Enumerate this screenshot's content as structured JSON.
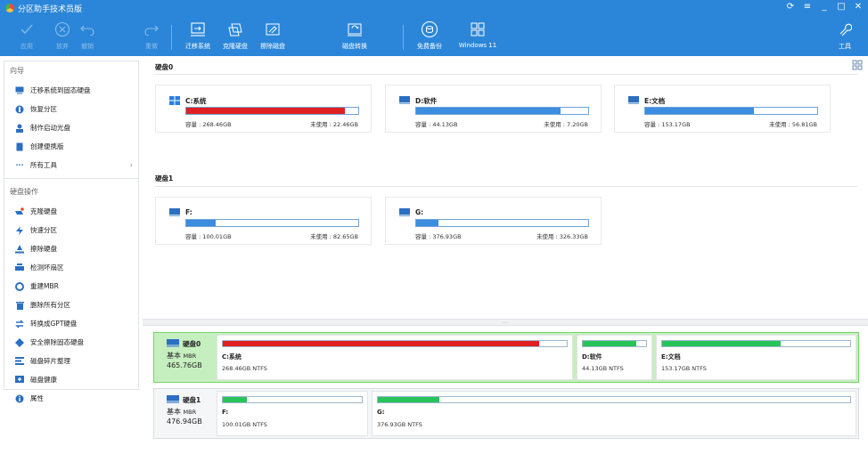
{
  "app": {
    "title": "分区助手技术员版"
  },
  "toolbar": {
    "apply": "应用",
    "discard": "放弃",
    "undo": "撤销",
    "redo": "重做",
    "migrate": "迁移系统",
    "clone": "克隆硬盘",
    "wipe": "擦除磁盘",
    "convert": "磁盘转换",
    "backup": "免费备份",
    "win11": "Windows 11",
    "tools": "工具"
  },
  "sidebar": {
    "wizard_title": "向导",
    "wizard_items": [
      "迁移系统到固态硬盘",
      "恢复分区",
      "制作启动光盘",
      "创建便携版",
      "所有工具"
    ],
    "disk_ops_title": "硬盘操作",
    "disk_ops_items": [
      "克隆硬盘",
      "快速分区",
      "擦除硬盘",
      "检测坏扇区",
      "重建MBR",
      "删除所有分区",
      "转换成GPT硬盘",
      "安全擦除固态硬盘",
      "磁盘碎片整理",
      "磁盘健康",
      "属性"
    ]
  },
  "disks": [
    {
      "title": "硬盘0",
      "row_label": "硬盘0",
      "type": "基本",
      "style": "MBR",
      "size": "465.76GB",
      "partitions": [
        {
          "name": "C:系统",
          "capacity": "容量 : 268.46GB",
          "free": "未使用 : 22.46GB",
          "row_info": "268.46GB NTFS",
          "used_fraction": 0.92,
          "color": "#e02020",
          "bottom_color": "#e02020",
          "icon": "windows-logo-icon"
        },
        {
          "name": "D:软件",
          "capacity": "容量 : 44.13GB",
          "free": "未使用 : 7.20GB",
          "row_info": "44.13GB NTFS",
          "used_fraction": 0.84,
          "color": "#3c8de0",
          "bottom_color": "#27c45a",
          "icon": "drive-icon"
        },
        {
          "name": "E:文档",
          "capacity": "容量 : 153.17GB",
          "free": "未使用 : 56.81GB",
          "row_info": "153.17GB NTFS",
          "used_fraction": 0.63,
          "color": "#3c8de0",
          "bottom_color": "#27c45a",
          "icon": "drive-icon"
        }
      ]
    },
    {
      "title": "硬盘1",
      "row_label": "硬盘1",
      "type": "基本",
      "style": "MBR",
      "size": "476.94GB",
      "partitions": [
        {
          "name": "F:",
          "capacity": "容量 : 100.01GB",
          "free": "未使用 : 82.65GB",
          "row_info": "100.01GB NTFS",
          "used_fraction": 0.17,
          "color": "#3c8de0",
          "bottom_color": "#27c45a",
          "icon": "drive-icon"
        },
        {
          "name": "G:",
          "capacity": "容量 : 376.93GB",
          "free": "未使用 : 326.33GB",
          "row_info": "376.93GB NTFS",
          "used_fraction": 0.13,
          "color": "#3c8de0",
          "bottom_color": "#27c45a",
          "icon": "drive-icon"
        }
      ]
    }
  ]
}
